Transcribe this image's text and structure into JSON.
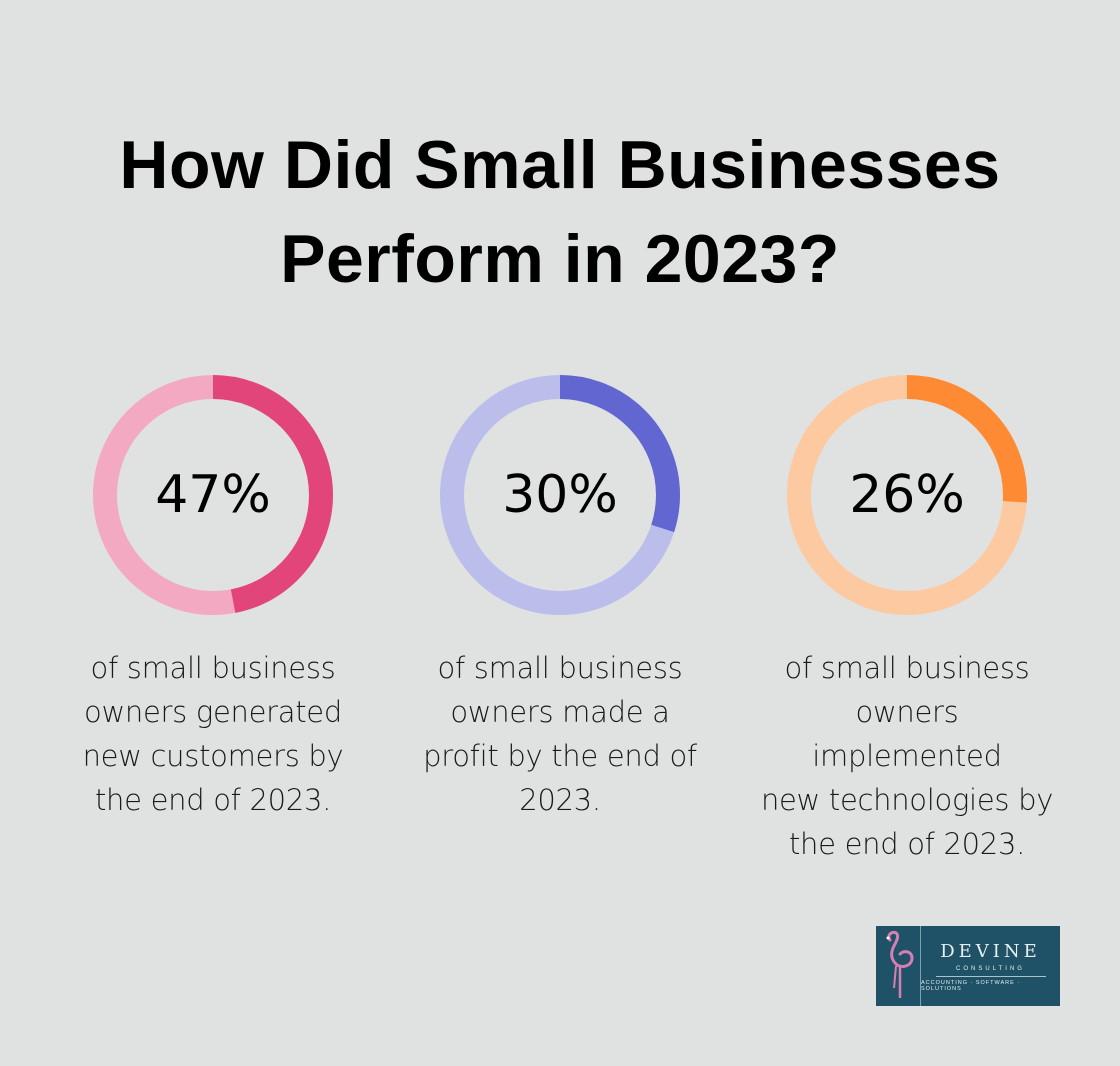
{
  "title": {
    "line1": "How Did Small Businesses",
    "line2": "Perform in 2023?"
  },
  "chart_data": [
    {
      "type": "pie",
      "value": 47,
      "label": "47%",
      "caption_lines": [
        "of small business",
        "owners generated",
        "new customers by",
        "the end of 2023."
      ],
      "color_fill": "#e2457a",
      "color_track": "#f2a9c1"
    },
    {
      "type": "pie",
      "value": 30,
      "label": "30%",
      "caption_lines": [
        "of small business",
        "owners made a",
        "profit by the end of",
        "2023."
      ],
      "color_fill": "#6266d0",
      "color_track": "#bbbdeb"
    },
    {
      "type": "pie",
      "value": 26,
      "label": "26%",
      "caption_lines": [
        "of small business",
        "owners implemented",
        "new technologies by",
        "the end of 2023."
      ],
      "color_fill": "#fe8a34",
      "color_track": "#fdc9a0"
    }
  ],
  "logo": {
    "name": "DEVINE",
    "sub": "CONSULTING",
    "tagline": "ACCOUNTING · SOFTWARE · SOLUTIONS"
  }
}
